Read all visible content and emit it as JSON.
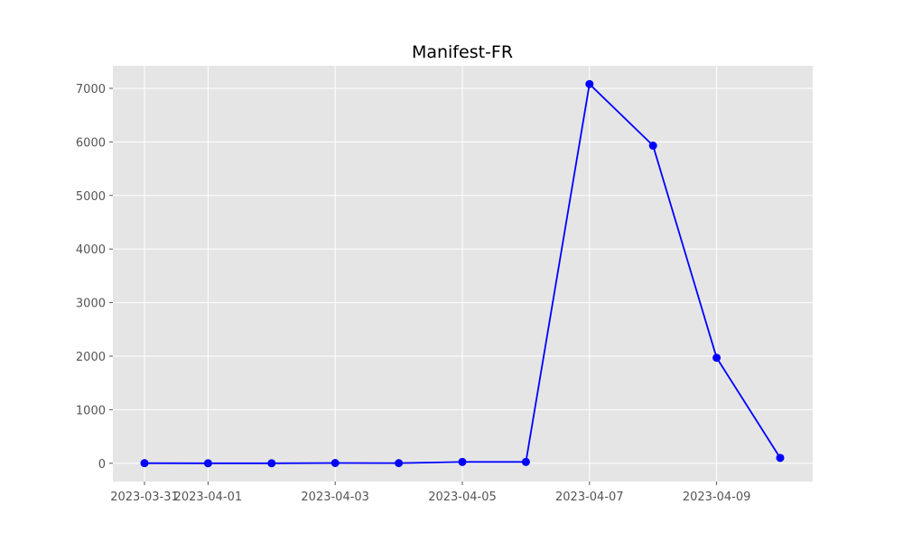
{
  "chart_data": {
    "type": "line",
    "title": "Manifest-FR",
    "xlabel": "",
    "ylabel": "",
    "grid": true,
    "x": [
      "2023-03-31",
      "2023-04-01",
      "2023-04-02",
      "2023-04-03",
      "2023-04-04",
      "2023-04-05",
      "2023-04-06",
      "2023-04-07",
      "2023-04-08",
      "2023-04-09",
      "2023-04-10"
    ],
    "x_tick_labels": [
      "2023-03-31",
      "2023-04-01",
      "2023-04-03",
      "2023-04-05",
      "2023-04-07",
      "2023-04-09"
    ],
    "x_tick_dates": [
      "2023-03-31",
      "2023-04-01",
      "2023-04-03",
      "2023-04-05",
      "2023-04-07",
      "2023-04-09"
    ],
    "ylim": [
      -340,
      7420
    ],
    "y_ticks": [
      0,
      1000,
      2000,
      3000,
      4000,
      5000,
      6000,
      7000
    ],
    "y_tick_labels": [
      "0",
      "1000",
      "2000",
      "3000",
      "4000",
      "5000",
      "6000",
      "7000"
    ],
    "series": [
      {
        "values": [
          2,
          0,
          0,
          5,
          3,
          25,
          25,
          7080,
          5930,
          1970,
          100
        ],
        "color": "#0000ff"
      }
    ]
  }
}
